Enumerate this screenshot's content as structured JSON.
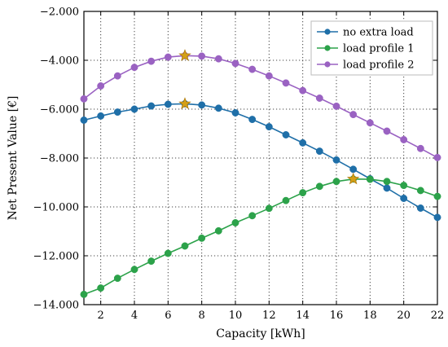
{
  "chart_data": {
    "type": "line",
    "title": "",
    "xlabel": "Capacity [kWh]",
    "ylabel": "Net Present Value [€]",
    "xlim": [
      1,
      22
    ],
    "ylim": [
      -14000,
      -2000
    ],
    "grid": true,
    "legend_position": "top-right",
    "x_ticks": [
      2,
      4,
      6,
      8,
      10,
      12,
      14,
      16,
      18,
      20,
      22
    ],
    "x_tick_labels": [
      "2",
      "4",
      "6",
      "8",
      "10",
      "12",
      "14",
      "16",
      "18",
      "20",
      "22"
    ],
    "y_ticks": [
      -14000,
      -12000,
      -10000,
      -8000,
      -6000,
      -4000,
      -2000
    ],
    "y_tick_labels": [
      "−14.000",
      "−12.000",
      "−10.000",
      "−8.000",
      "−6.000",
      "−4.000",
      "−2.000"
    ],
    "x": [
      1,
      2,
      3,
      4,
      5,
      6,
      7,
      8,
      9,
      10,
      11,
      12,
      13,
      14,
      15,
      16,
      17,
      18,
      19,
      20,
      21,
      22
    ],
    "series": [
      {
        "name": "no extra load",
        "color": "#1f6fa8",
        "values": [
          -6450,
          -6280,
          -6120,
          -6000,
          -5870,
          -5800,
          -5780,
          -5830,
          -5960,
          -6150,
          -6420,
          -6720,
          -7050,
          -7380,
          -7720,
          -8080,
          -8460,
          -8850,
          -9230,
          -9650,
          -10050,
          -10430
        ],
        "optimum": {
          "x": 7,
          "y": -5780
        }
      },
      {
        "name": "load profile 1",
        "color": "#2ca24a",
        "values": [
          -13580,
          -13320,
          -12920,
          -12560,
          -12220,
          -11900,
          -11600,
          -11280,
          -10980,
          -10650,
          -10360,
          -10060,
          -9740,
          -9420,
          -9160,
          -8960,
          -8860,
          -8870,
          -8960,
          -9120,
          -9330,
          -9570
        ],
        "optimum": {
          "x": 17,
          "y": -8860
        }
      },
      {
        "name": "load profile 2",
        "color": "#9a62c2",
        "values": [
          -5580,
          -5050,
          -4640,
          -4290,
          -4040,
          -3870,
          -3810,
          -3830,
          -3940,
          -4130,
          -4370,
          -4640,
          -4930,
          -5240,
          -5550,
          -5880,
          -6220,
          -6560,
          -6900,
          -7250,
          -7610,
          -7980
        ],
        "optimum": {
          "x": 7,
          "y": -3810
        }
      }
    ],
    "optimum_marker_color": "#d4a017"
  }
}
